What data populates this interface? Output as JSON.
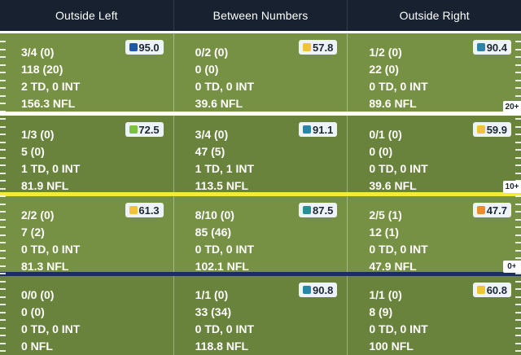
{
  "columns": [
    "Outside Left",
    "Between Numbers",
    "Outside Right"
  ],
  "rows": [
    {
      "cells": [
        {
          "lines": [
            "3/4 (0)",
            "118 (20)",
            "2 TD, 0 INT",
            "156.3 NFL"
          ],
          "grade": "95.0",
          "grade_color": "#1f56a8"
        },
        {
          "lines": [
            "0/2 (0)",
            "0 (0)",
            "0 TD, 0 INT",
            "39.6 NFL"
          ],
          "grade": "57.8",
          "grade_color": "#f2c335"
        },
        {
          "lines": [
            "1/2 (0)",
            "22 (0)",
            "0 TD, 0 INT",
            "89.6 NFL"
          ],
          "grade": "90.4",
          "grade_color": "#2a86a8"
        }
      ]
    },
    {
      "cells": [
        {
          "lines": [
            "1/3 (0)",
            "5 (0)",
            "1 TD, 0 INT",
            "81.9 NFL"
          ],
          "grade": "72.5",
          "grade_color": "#7cc142"
        },
        {
          "lines": [
            "3/4 (0)",
            "47 (5)",
            "1 TD, 1 INT",
            "113.5 NFL"
          ],
          "grade": "91.1",
          "grade_color": "#2a86a8"
        },
        {
          "lines": [
            "0/1 (0)",
            "0 (0)",
            "0 TD, 0 INT",
            "39.6 NFL"
          ],
          "grade": "59.9",
          "grade_color": "#f2c335"
        }
      ]
    },
    {
      "cells": [
        {
          "lines": [
            "2/2 (0)",
            "7 (2)",
            "0 TD, 0 INT",
            "81.3 NFL"
          ],
          "grade": "61.3",
          "grade_color": "#f2c335"
        },
        {
          "lines": [
            "8/10 (0)",
            "85 (46)",
            "0 TD, 0 INT",
            "102.1 NFL"
          ],
          "grade": "87.5",
          "grade_color": "#2a8f94"
        },
        {
          "lines": [
            "2/5 (1)",
            "12 (1)",
            "0 TD, 0 INT",
            "47.9 NFL"
          ],
          "grade": "47.7",
          "grade_color": "#ef8a2d"
        }
      ]
    },
    {
      "cells": [
        {
          "lines": [
            "0/0 (0)",
            "0 (0)",
            "0 TD, 0 INT",
            "0 NFL"
          ],
          "grade": "",
          "grade_color": ""
        },
        {
          "lines": [
            "1/1 (0)",
            "33 (34)",
            "0 TD, 0 INT",
            "118.8 NFL"
          ],
          "grade": "90.8",
          "grade_color": "#2a86a8"
        },
        {
          "lines": [
            "1/1 (0)",
            "8 (9)",
            "0 TD, 0 INT",
            "100 NFL"
          ],
          "grade": "60.8",
          "grade_color": "#f2c335"
        }
      ]
    }
  ],
  "yard_markers": [
    "20+",
    "10+",
    "0+"
  ]
}
